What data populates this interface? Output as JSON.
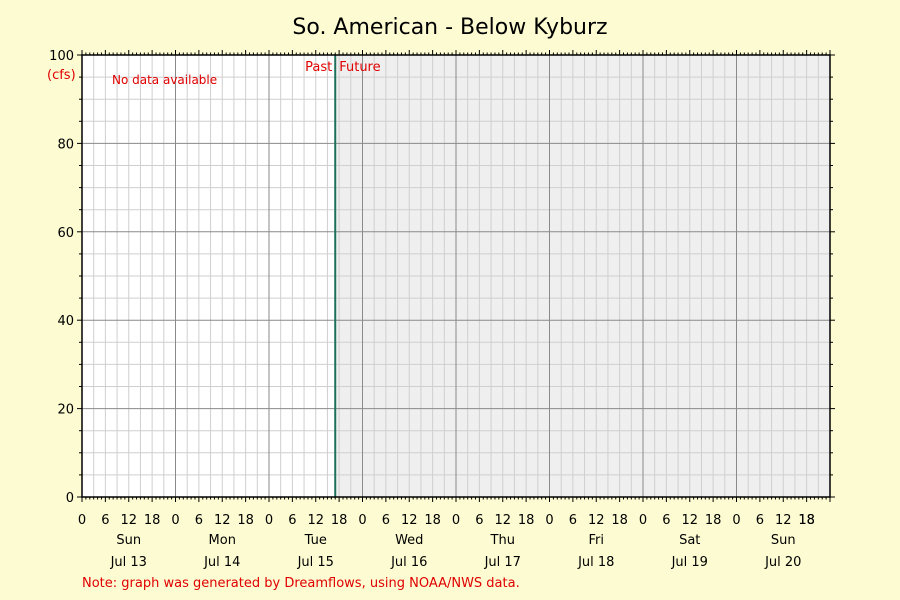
{
  "chart_data": {
    "type": "line",
    "title": "So. American - Below Kyburz",
    "ylabel": "(cfs)",
    "ylim": [
      0,
      100
    ],
    "yticks": [
      0,
      20,
      40,
      60,
      80,
      100
    ],
    "xlim": [
      "Jul 13 00:00",
      "Jul 21 00:00"
    ],
    "hour_ticks": [
      "0",
      "6",
      "12",
      "18"
    ],
    "days": [
      {
        "weekday": "Sun",
        "date": "Jul 13"
      },
      {
        "weekday": "Mon",
        "date": "Jul 14"
      },
      {
        "weekday": "Tue",
        "date": "Jul 15"
      },
      {
        "weekday": "Wed",
        "date": "Jul 16"
      },
      {
        "weekday": "Thu",
        "date": "Jul 17"
      },
      {
        "weekday": "Fri",
        "date": "Jul 18"
      },
      {
        "weekday": "Sat",
        "date": "Jul 19"
      },
      {
        "weekday": "Sun",
        "date": "Jul 20"
      }
    ],
    "now_marker": "Jul 15 17:00",
    "past_label": "Past",
    "future_label": "Future",
    "no_data_message": "No data available",
    "series": [],
    "grid": true,
    "colors": {
      "background": "#fcfbd2",
      "past_area": "#ffffff",
      "future_area": "#efefef",
      "now_line": "#1f6f5a",
      "annotation": "#e00000"
    }
  },
  "footer": {
    "note": "Note: graph was generated by Dreamflows, using NOAA/NWS data."
  }
}
